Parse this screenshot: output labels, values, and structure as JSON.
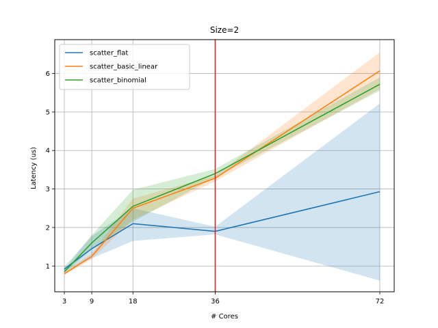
{
  "chart_data": {
    "type": "line",
    "title": "Size=2",
    "xlabel": "# Cores",
    "ylabel": "Latency (us)",
    "x": [
      3,
      9,
      18,
      36,
      72
    ],
    "x_ticks": [
      3,
      9,
      18,
      36,
      72
    ],
    "y_ticks": [
      1,
      2,
      3,
      4,
      5,
      6
    ],
    "xlim": [
      0.9,
      75.15
    ],
    "ylim": [
      0.33,
      6.88
    ],
    "grid": true,
    "legend_position": "top-left",
    "vline": {
      "x": 36,
      "color": "#d62728"
    },
    "series": [
      {
        "name": "scatter_flat",
        "color": "#1f77b4",
        "values": [
          0.92,
          1.45,
          2.1,
          1.9,
          2.93
        ],
        "lower": [
          0.85,
          1.2,
          1.65,
          1.82,
          0.62
        ],
        "upper": [
          0.98,
          1.78,
          2.5,
          2.02,
          5.22
        ]
      },
      {
        "name": "scatter_basic_linear",
        "color": "#ff7f0e",
        "values": [
          0.8,
          1.25,
          2.5,
          3.28,
          6.07
        ],
        "lower": [
          0.76,
          1.18,
          2.2,
          3.2,
          5.6
        ],
        "upper": [
          0.84,
          1.32,
          2.75,
          3.35,
          6.55
        ]
      },
      {
        "name": "scatter_binomial",
        "color": "#2ca02c",
        "values": [
          0.85,
          1.6,
          2.55,
          3.4,
          5.72
        ],
        "lower": [
          0.8,
          1.45,
          2.15,
          3.3,
          5.55
        ],
        "upper": [
          0.9,
          1.8,
          2.98,
          3.52,
          5.9
        ]
      }
    ]
  }
}
